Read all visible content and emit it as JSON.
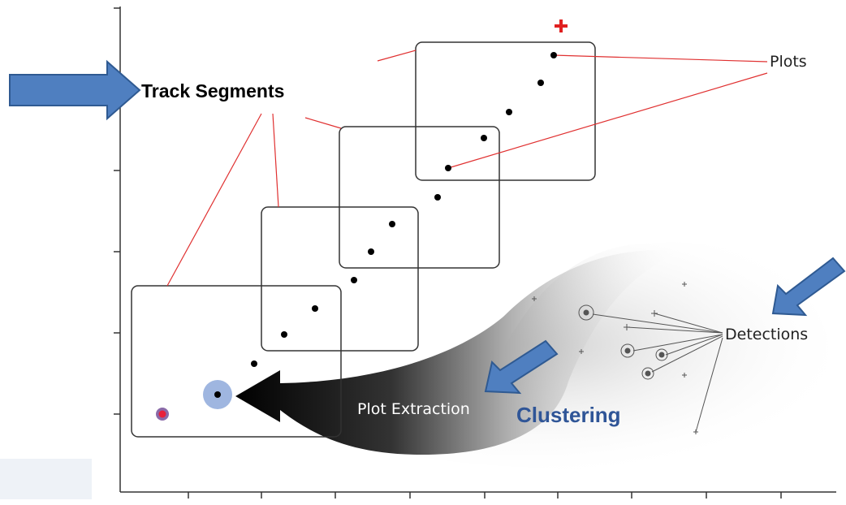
{
  "labels": {
    "track_segments": "Track Segments",
    "plots": "Plots",
    "detections": "Detections",
    "plot_extraction": "Plot Extraction",
    "clustering": "Clustering"
  }
}
